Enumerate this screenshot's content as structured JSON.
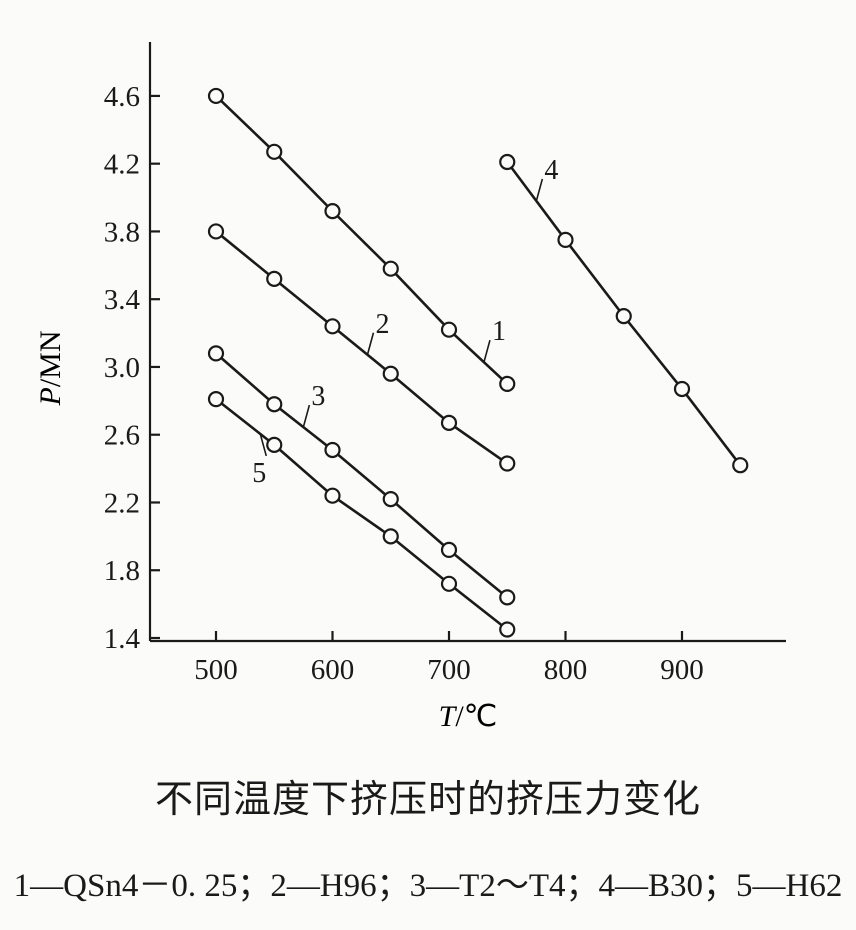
{
  "figure": {
    "title": "不同温度下挤压时的挤压力变化",
    "legend_text": "1—QSn4－0. 25；2—H96；3—T2～T4；4—B30；5—H62"
  },
  "chart_data": {
    "type": "line",
    "title": "不同温度下挤压时的挤压力变化",
    "xlabel": "T/℃",
    "ylabel": "P/MN",
    "xlim": [
      445,
      1000
    ],
    "ylim": [
      1.4,
      4.9
    ],
    "x_ticks": [
      500,
      600,
      700,
      800,
      900
    ],
    "y_ticks": [
      1.4,
      1.8,
      2.2,
      2.6,
      3.0,
      3.4,
      3.8,
      4.2,
      4.6
    ],
    "y_tick_labels": [
      "1.4",
      "1.8",
      "2.2",
      "2.6",
      "3.0",
      "3.4",
      "3.8",
      "4.2",
      "4.6"
    ],
    "grid": false,
    "marker": "open-circle",
    "series": [
      {
        "name": "1",
        "label": "QSn4-0.25",
        "x": [
          500,
          550,
          600,
          650,
          700,
          750
        ],
        "values": [
          4.6,
          4.27,
          3.92,
          3.58,
          3.22,
          2.9
        ],
        "tag_at": [
          730,
          3.3
        ]
      },
      {
        "name": "2",
        "label": "H96",
        "x": [
          500,
          550,
          600,
          650,
          700,
          750
        ],
        "values": [
          3.8,
          3.52,
          3.24,
          2.96,
          2.67,
          2.43
        ],
        "tag_at": [
          630,
          3.13
        ]
      },
      {
        "name": "3",
        "label": "T2~T4",
        "x": [
          500,
          550,
          600,
          650,
          700,
          750
        ],
        "values": [
          3.08,
          2.78,
          2.51,
          2.22,
          1.92,
          1.64
        ],
        "tag_at": [
          575,
          2.78
        ]
      },
      {
        "name": "4",
        "label": "B30",
        "x": [
          750,
          800,
          850,
          900,
          950
        ],
        "values": [
          4.21,
          3.75,
          3.3,
          2.87,
          2.42
        ],
        "tag_at": [
          775,
          4.12
        ]
      },
      {
        "name": "5",
        "label": "H62",
        "x": [
          500,
          550,
          600,
          650,
          700,
          750
        ],
        "values": [
          2.81,
          2.54,
          2.24,
          2.0,
          1.72,
          1.45
        ],
        "tag_at": [
          538,
          2.28
        ]
      }
    ]
  }
}
